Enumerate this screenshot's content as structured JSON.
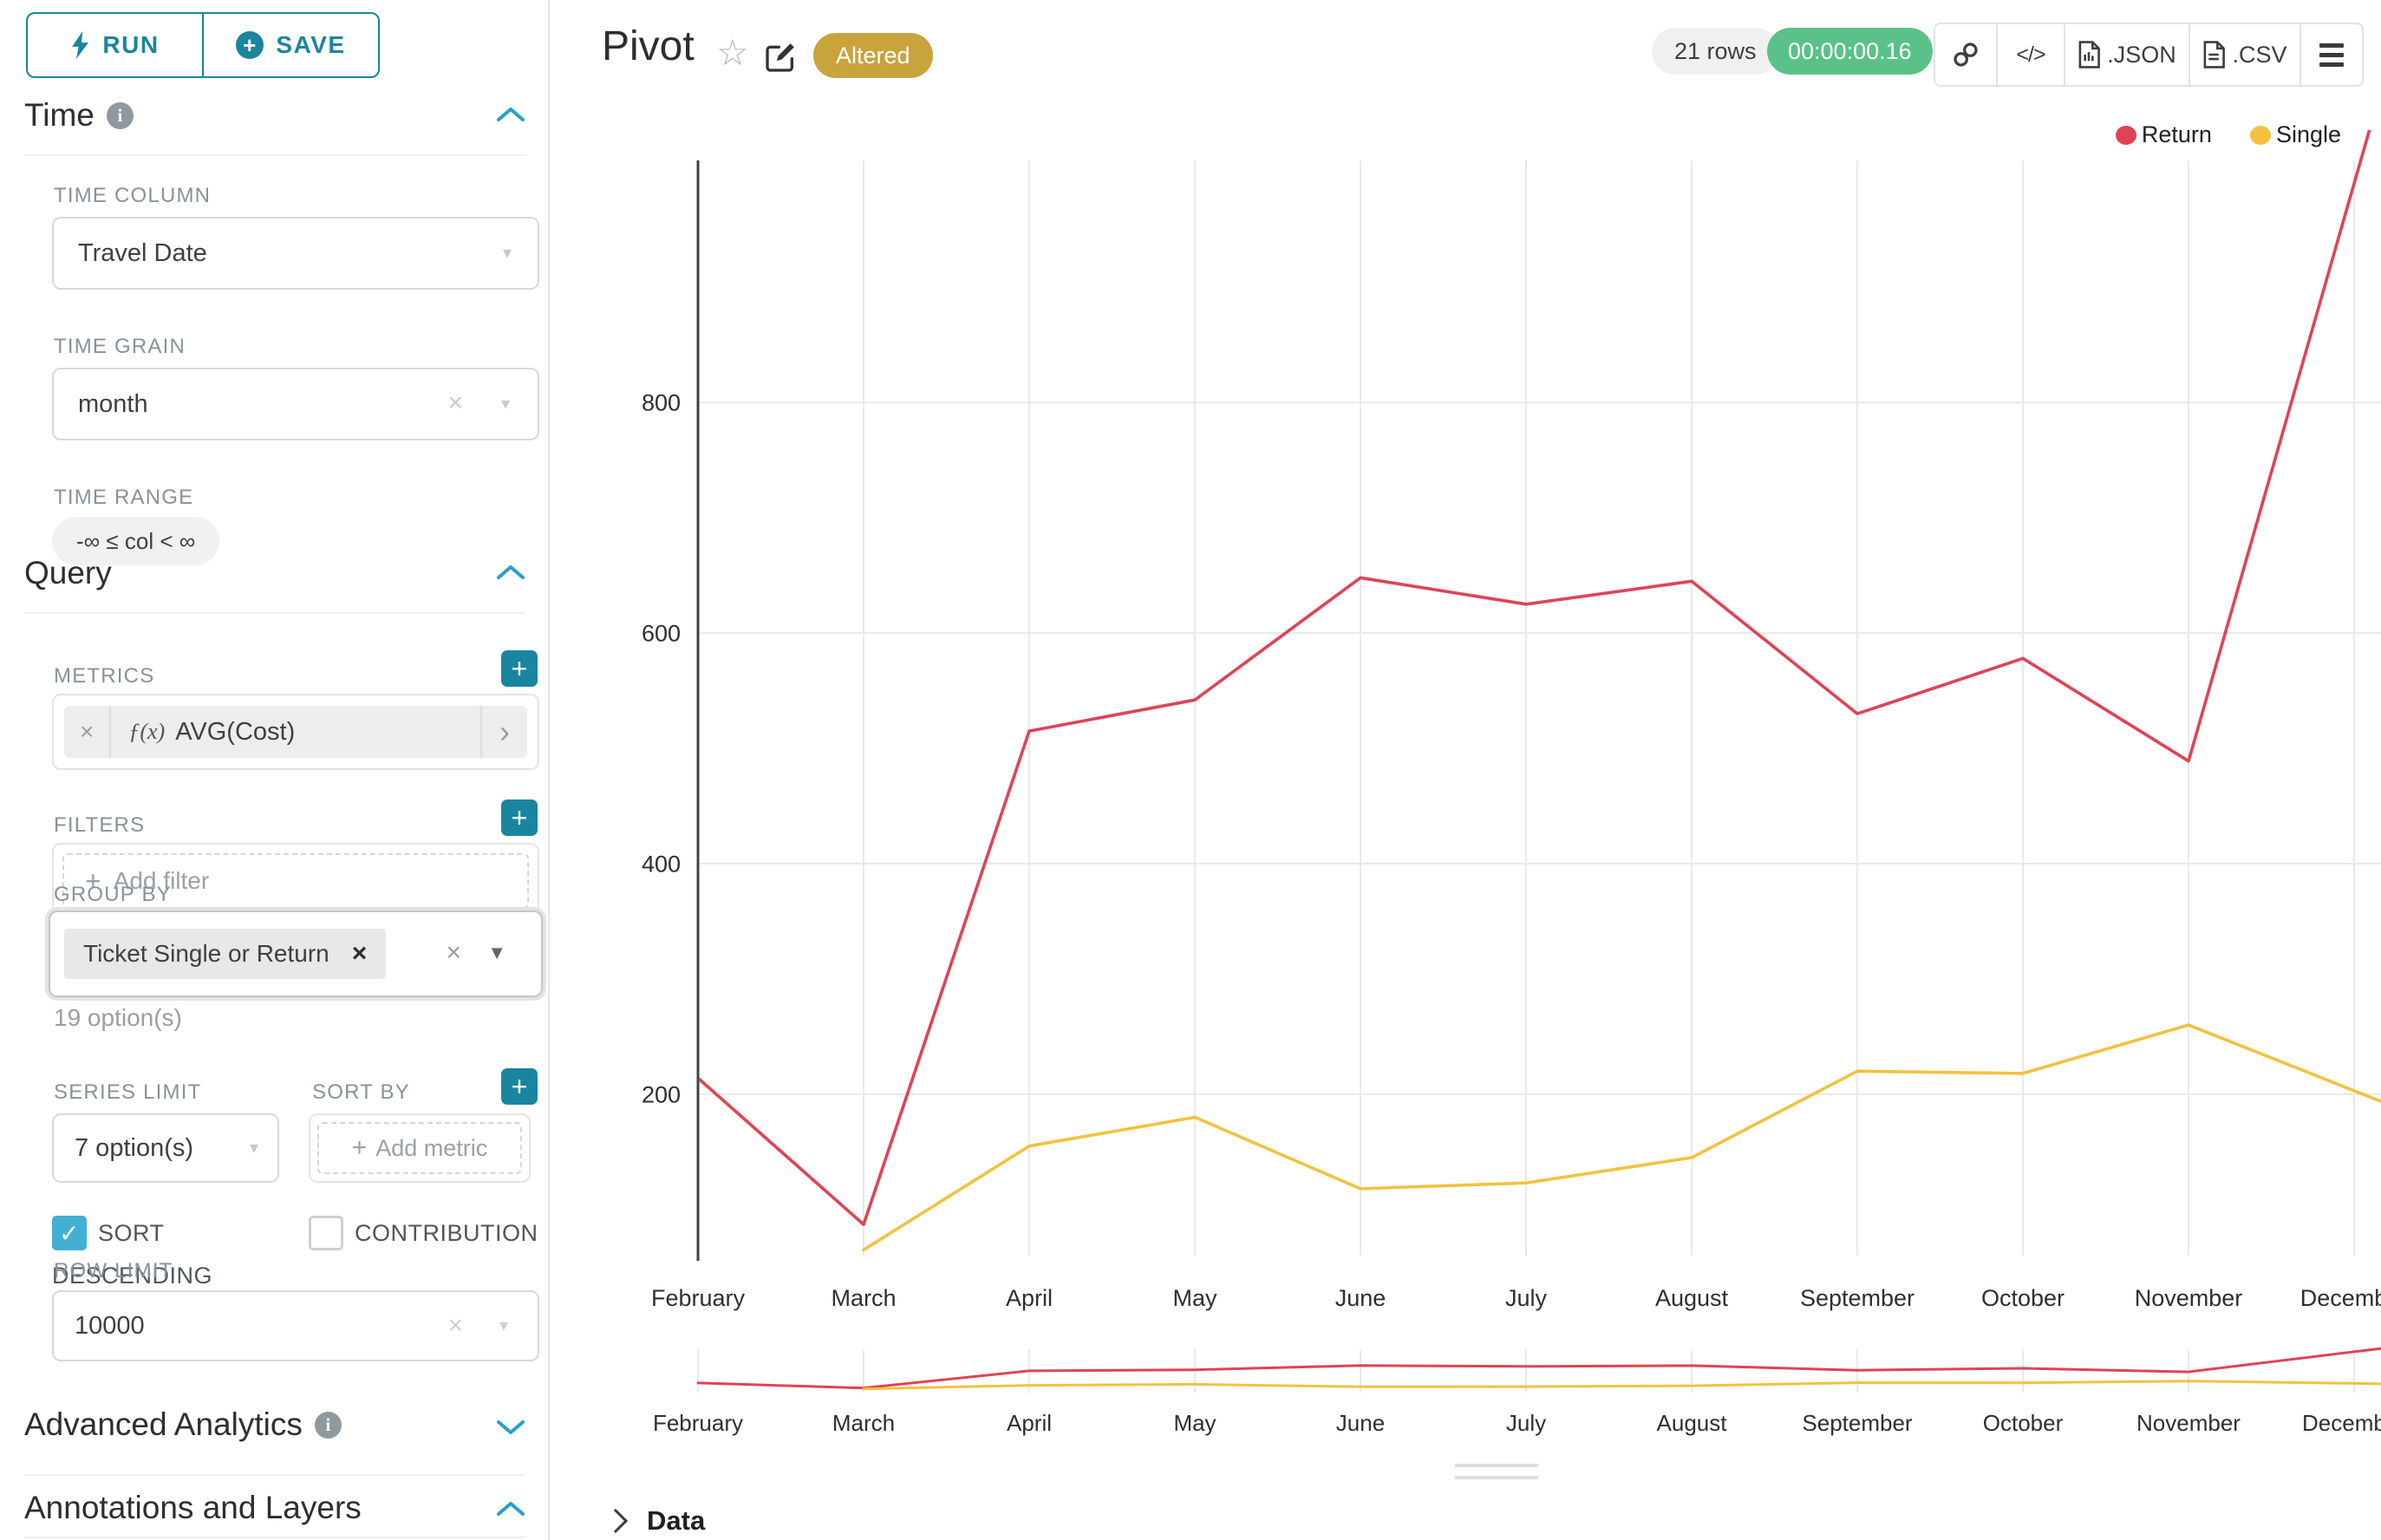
{
  "sidebar": {
    "run_label": "RUN",
    "save_label": "SAVE",
    "time": {
      "heading": "Time",
      "time_column_label": "TIME COLUMN",
      "time_column_value": "Travel Date",
      "time_grain_label": "TIME GRAIN",
      "time_grain_value": "month",
      "time_range_label": "TIME RANGE",
      "time_range_value": "-∞ ≤ col < ∞"
    },
    "query": {
      "heading": "Query",
      "metrics_label": "METRICS",
      "metric_fx": "ƒ(x)",
      "metric_value": "AVG(Cost)",
      "filters_label": "FILTERS",
      "add_filter_label": "Add filter",
      "group_by_label": "GROUP BY",
      "group_by_chip": "Ticket Single or Return",
      "group_by_options": "19 option(s)",
      "series_limit_label": "SERIES LIMIT",
      "series_limit_value": "7 option(s)",
      "sort_by_label": "SORT BY",
      "add_metric_label": "Add metric",
      "sort_descending_label": "SORT DESCENDING",
      "contribution_label": "CONTRIBUTION",
      "row_limit_label": "ROW LIMIT",
      "row_limit_value": "10000"
    },
    "advanced_heading": "Advanced Analytics",
    "annotations_heading": "Annotations and Layers"
  },
  "header": {
    "title": "Pivot",
    "altered_badge": "Altered",
    "rows_badge": "21 rows",
    "timer": "00:00:00.16",
    "code_label": "</>",
    "json_label": ".JSON",
    "csv_label": ".CSV"
  },
  "footer": {
    "data_label": "Data"
  },
  "glyphs": {
    "plus": "+",
    "clear": "×",
    "caret_small": "▾",
    "caret_filled": "▼",
    "chevron_right": "›",
    "check": "✓",
    "star": "☆"
  },
  "colors": {
    "accent_teal": "#1A85A0",
    "checkbox_teal": "#42AFD3",
    "altered_gold": "#C9A33C",
    "timer_green": "#5AC189",
    "return_red": "#E04355",
    "single_yellow": "#F2C23F"
  },
  "chart_data": {
    "type": "line",
    "title": "Pivot",
    "categories": [
      "February",
      "March",
      "April",
      "May",
      "June",
      "July",
      "August",
      "September",
      "October",
      "November",
      "December"
    ],
    "series": [
      {
        "name": "Return",
        "color": "#E04355",
        "values": [
          214,
          87,
          515,
          542,
          648,
          625,
          645,
          530,
          578,
          489,
          990
        ]
      },
      {
        "name": "Single",
        "color": "#F2C23F",
        "values": [
          null,
          65,
          155,
          180,
          118,
          123,
          145,
          220,
          218,
          260,
          203
        ]
      }
    ],
    "xlabel": "",
    "ylabel": "",
    "ylim": [
      60,
      1010
    ],
    "yticks": [
      200,
      400,
      600,
      800
    ],
    "grid": true,
    "legend_position": "top-right",
    "range_selector": true
  }
}
